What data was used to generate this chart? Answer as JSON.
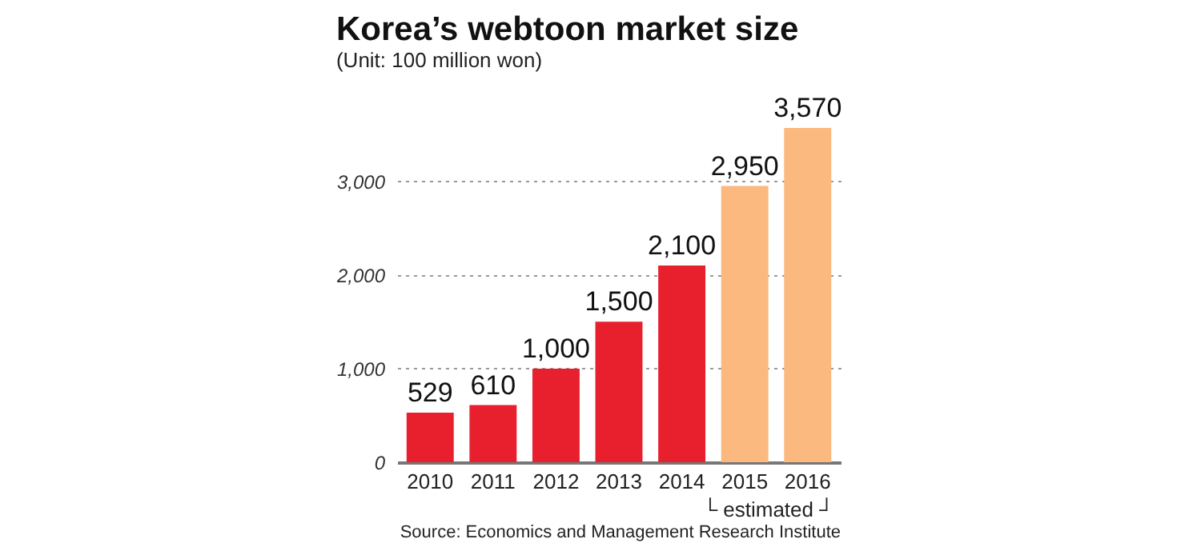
{
  "chart_data": {
    "type": "bar",
    "title": "Korea’s webtoon market size",
    "subtitle": "(Unit: 100 million won)",
    "categories": [
      "2010",
      "2011",
      "2012",
      "2013",
      "2014",
      "2015",
      "2016"
    ],
    "values": [
      529,
      610,
      1000,
      1500,
      2100,
      2950,
      3570
    ],
    "colors": [
      "#e8202e",
      "#e8202e",
      "#e8202e",
      "#e8202e",
      "#e8202e",
      "#fbb97f",
      "#fbb97f"
    ],
    "value_labels": [
      "529",
      "610",
      "1,000",
      "1,500",
      "2,100",
      "2,950",
      "3,570"
    ],
    "ylim": [
      0,
      3570
    ],
    "yticks": [
      {
        "value": 0,
        "label": "0"
      },
      {
        "value": 1000,
        "label": "1,000"
      },
      {
        "value": 2000,
        "label": "2,000"
      },
      {
        "value": 3000,
        "label": "3,000"
      }
    ],
    "grid": "y",
    "annotations": [
      "└ estimated ┘",
      "Source: Economics and Management Research Institute"
    ]
  }
}
